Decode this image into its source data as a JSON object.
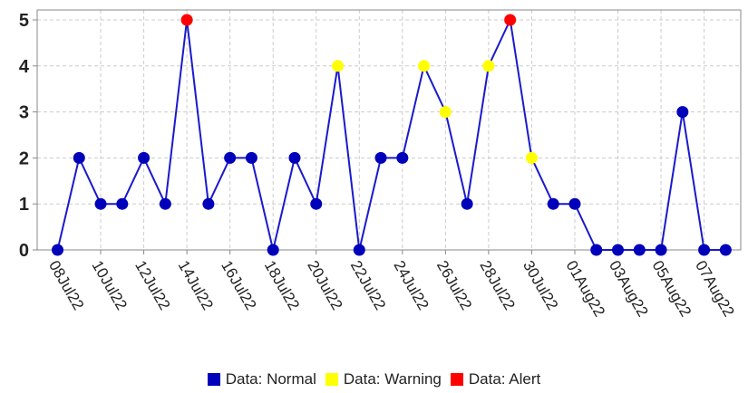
{
  "chart_data": {
    "type": "line",
    "x_start": "08Jul22",
    "x_labels": [
      "08Jul22",
      "10Jul22",
      "12Jul22",
      "14Jul22",
      "16Jul22",
      "18Jul22",
      "20Jul22",
      "22Jul22",
      "24Jul22",
      "26Jul22",
      "28Jul22",
      "30Jul22",
      "01Aug22",
      "03Aug22",
      "05Aug22",
      "07Aug22"
    ],
    "values": [
      0,
      2,
      1,
      1,
      2,
      1,
      5,
      1,
      2,
      2,
      0,
      2,
      1,
      4,
      0,
      2,
      2,
      4,
      3,
      1,
      4,
      5,
      2,
      1,
      1,
      0,
      0,
      0,
      0,
      3,
      0,
      0
    ],
    "status": [
      "normal",
      "normal",
      "normal",
      "normal",
      "normal",
      "normal",
      "alert",
      "normal",
      "normal",
      "normal",
      "normal",
      "normal",
      "normal",
      "warning",
      "normal",
      "normal",
      "normal",
      "warning",
      "warning",
      "normal",
      "warning",
      "alert",
      "warning",
      "normal",
      "normal",
      "normal",
      "normal",
      "normal",
      "normal",
      "normal",
      "normal",
      "normal"
    ],
    "y_ticks": [
      "0",
      "1",
      "2",
      "3",
      "4",
      "5"
    ],
    "ylim": [
      0,
      5
    ],
    "grid": true,
    "line_color": "#1a1acc",
    "status_colors": {
      "normal": "#0000bb",
      "warning": "#ffff00",
      "alert": "#ff0000"
    },
    "legend": [
      {
        "key": "normal",
        "label": "Data: Normal"
      },
      {
        "key": "warning",
        "label": "Data: Warning"
      },
      {
        "key": "alert",
        "label": "Data: Alert"
      }
    ],
    "legend_position": "bottom"
  }
}
